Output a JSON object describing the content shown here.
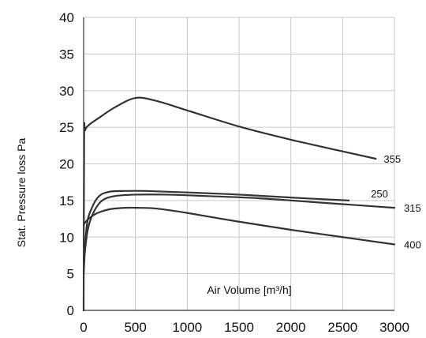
{
  "chart_data": {
    "type": "line",
    "title": "",
    "xlabel": "Air Volume [m³/h]",
    "ylabel": "Stat. Pressure loss Pa",
    "xlim": [
      0,
      3000
    ],
    "ylim": [
      0,
      40
    ],
    "x_ticks": [
      0,
      500,
      1000,
      1500,
      2000,
      2500,
      3000
    ],
    "y_ticks": [
      0,
      5,
      10,
      15,
      20,
      25,
      30,
      35,
      40
    ],
    "grid": true,
    "legend": "none",
    "line_color": "#333333",
    "series": [
      {
        "name": "355",
        "x": [
          0,
          5,
          15,
          50,
          150,
          300,
          500,
          700,
          1000,
          1500,
          2000,
          2500,
          2820
        ],
        "y": [
          0,
          23.5,
          24.6,
          25.3,
          26.3,
          27.7,
          29.0,
          28.6,
          27.3,
          25.1,
          23.3,
          21.7,
          20.7
        ]
      },
      {
        "name": "250",
        "x": [
          0,
          30,
          80,
          150,
          250,
          400,
          600,
          1000,
          1500,
          2000,
          2560
        ],
        "y": [
          5,
          11.5,
          14.0,
          15.6,
          16.2,
          16.3,
          16.3,
          16.1,
          15.8,
          15.4,
          15.0
        ]
      },
      {
        "name": "315",
        "x": [
          0,
          40,
          100,
          180,
          300,
          500,
          800,
          1200,
          1700,
          2200,
          2600,
          3000
        ],
        "y": [
          6.5,
          11.0,
          13.5,
          15.0,
          15.6,
          15.8,
          15.8,
          15.6,
          15.3,
          14.8,
          14.4,
          14.0
        ]
      },
      {
        "name": "400",
        "x": [
          0,
          40,
          120,
          250,
          400,
          500,
          700,
          1000,
          1500,
          2000,
          2500,
          3000
        ],
        "y": [
          11.7,
          12.4,
          13.2,
          13.8,
          14.0,
          14.0,
          13.9,
          13.3,
          12.1,
          11.0,
          10.0,
          9.0
        ]
      }
    ]
  }
}
